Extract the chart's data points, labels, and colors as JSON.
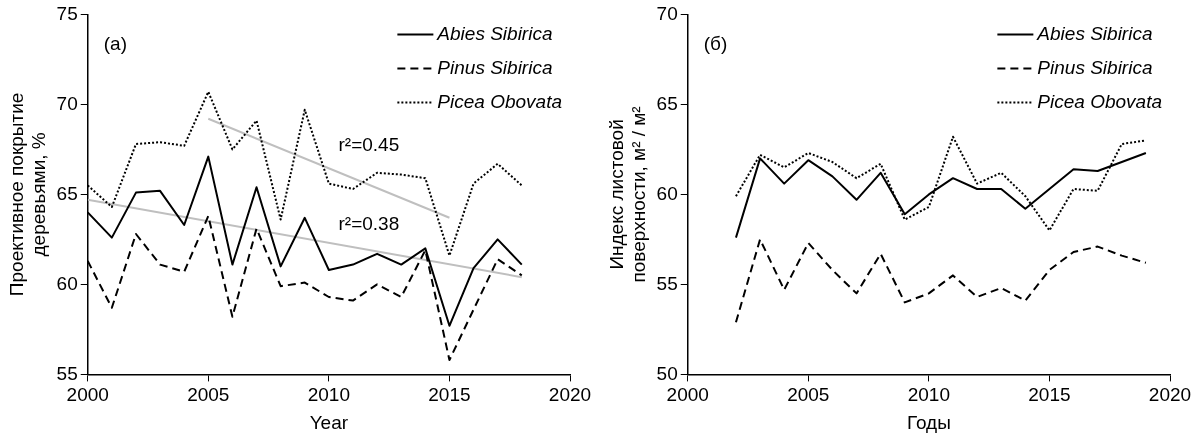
{
  "chart_data": [
    {
      "type": "line",
      "xlabel": "Year",
      "ylabel": "Проективное покрытие деревьями, %",
      "xlim": [
        2000,
        2020
      ],
      "xticks": [
        2000,
        2005,
        2010,
        2015,
        2020
      ],
      "ylim": [
        55,
        75
      ],
      "yticks": [
        55,
        60,
        65,
        70,
        75
      ],
      "grid": false,
      "legend": "top right",
      "marker": "none",
      "annotations": [
        "(a)",
        "r²=0.45",
        "r²=0.38"
      ],
      "series": [
        {
          "name": "Abies Sibirica",
          "color": "#000000",
          "line_style": "solid",
          "x": [
            2000,
            2001,
            2002,
            2003,
            2004,
            2005,
            2006,
            2007,
            2008,
            2009,
            2010,
            2011,
            2012,
            2013,
            2014,
            2015,
            2016,
            2017,
            2018
          ],
          "values": [
            64.0,
            62.6,
            65.1,
            65.2,
            63.3,
            67.1,
            61.1,
            65.4,
            61.0,
            63.7,
            60.8,
            61.1,
            61.7,
            61.1,
            62.0,
            57.7,
            60.9,
            62.5,
            61.1
          ]
        },
        {
          "name": "Pinus Sibirica",
          "color": "#000000",
          "line_style": "dashed",
          "x": [
            2000,
            2001,
            2002,
            2003,
            2004,
            2005,
            2006,
            2007,
            2008,
            2009,
            2010,
            2011,
            2012,
            2013,
            2014,
            2015,
            2016,
            2017,
            2018
          ],
          "values": [
            61.3,
            58.7,
            62.8,
            61.1,
            60.7,
            63.8,
            58.2,
            63.1,
            59.9,
            60.1,
            59.3,
            59.1,
            60.0,
            59.3,
            61.9,
            55.8,
            58.6,
            61.4,
            60.5
          ]
        },
        {
          "name": "Picea Obovata",
          "color": "#000000",
          "line_style": "dotted",
          "x": [
            2000,
            2001,
            2002,
            2003,
            2004,
            2005,
            2006,
            2007,
            2008,
            2009,
            2010,
            2011,
            2012,
            2013,
            2014,
            2015,
            2016,
            2017,
            2018
          ],
          "values": [
            65.5,
            64.3,
            67.8,
            67.9,
            67.7,
            70.7,
            67.5,
            69.1,
            63.6,
            69.7,
            65.6,
            65.3,
            66.2,
            66.1,
            65.9,
            61.6,
            65.6,
            66.7,
            65.5
          ]
        },
        {
          "type": "line",
          "color": "#bfbfbf",
          "line_style": "solid",
          "x": [
            2005,
            2015
          ],
          "values": [
            69.2,
            63.7
          ]
        },
        {
          "type": "line",
          "color": "#bfbfbf",
          "line_style": "solid",
          "x": [
            2000,
            2018
          ],
          "values": [
            64.7,
            60.4
          ]
        }
      ]
    },
    {
      "type": "line",
      "xlabel": "Годы",
      "ylabel": "Индекс листовой поверхности, м² / м²",
      "xlim": [
        2000,
        2020
      ],
      "xticks": [
        2000,
        2005,
        2010,
        2015,
        2020
      ],
      "ylim": [
        50,
        70
      ],
      "yticks": [
        50,
        55,
        60,
        65,
        70
      ],
      "grid": false,
      "legend": "top right",
      "marker": "none",
      "annotations": [
        "(б)"
      ],
      "series": [
        {
          "name": "Abies Sibirica",
          "color": "#000000",
          "line_style": "solid",
          "x": [
            2002,
            2003,
            2004,
            2005,
            2006,
            2007,
            2008,
            2009,
            2010,
            2011,
            2012,
            2013,
            2014,
            2015,
            2016,
            2017,
            2018,
            2019
          ],
          "values": [
            57.6,
            62.0,
            60.6,
            61.9,
            61.0,
            59.7,
            61.2,
            58.9,
            60.0,
            60.9,
            60.3,
            60.3,
            59.2,
            60.3,
            61.4,
            61.3,
            61.8,
            62.3
          ]
        },
        {
          "name": "Pinus Sibirica",
          "color": "#000000",
          "line_style": "dashed",
          "x": [
            2002,
            2003,
            2004,
            2005,
            2006,
            2007,
            2008,
            2009,
            2010,
            2011,
            2012,
            2013,
            2014,
            2015,
            2016,
            2017,
            2018,
            2019
          ],
          "values": [
            52.9,
            57.5,
            54.7,
            57.3,
            55.8,
            54.5,
            56.7,
            54.0,
            54.5,
            55.5,
            54.3,
            54.8,
            54.1,
            55.8,
            56.8,
            57.1,
            56.6,
            56.2
          ]
        },
        {
          "name": "Picea Obovata",
          "color": "#000000",
          "line_style": "dotted",
          "x": [
            2002,
            2003,
            2004,
            2005,
            2006,
            2007,
            2008,
            2009,
            2010,
            2011,
            2012,
            2013,
            2014,
            2015,
            2016,
            2017,
            2018,
            2019
          ],
          "values": [
            59.9,
            62.2,
            61.5,
            62.3,
            61.8,
            60.9,
            61.7,
            58.6,
            59.3,
            63.2,
            60.6,
            61.2,
            59.9,
            58.0,
            60.3,
            60.2,
            62.8,
            63.0
          ]
        }
      ]
    }
  ]
}
